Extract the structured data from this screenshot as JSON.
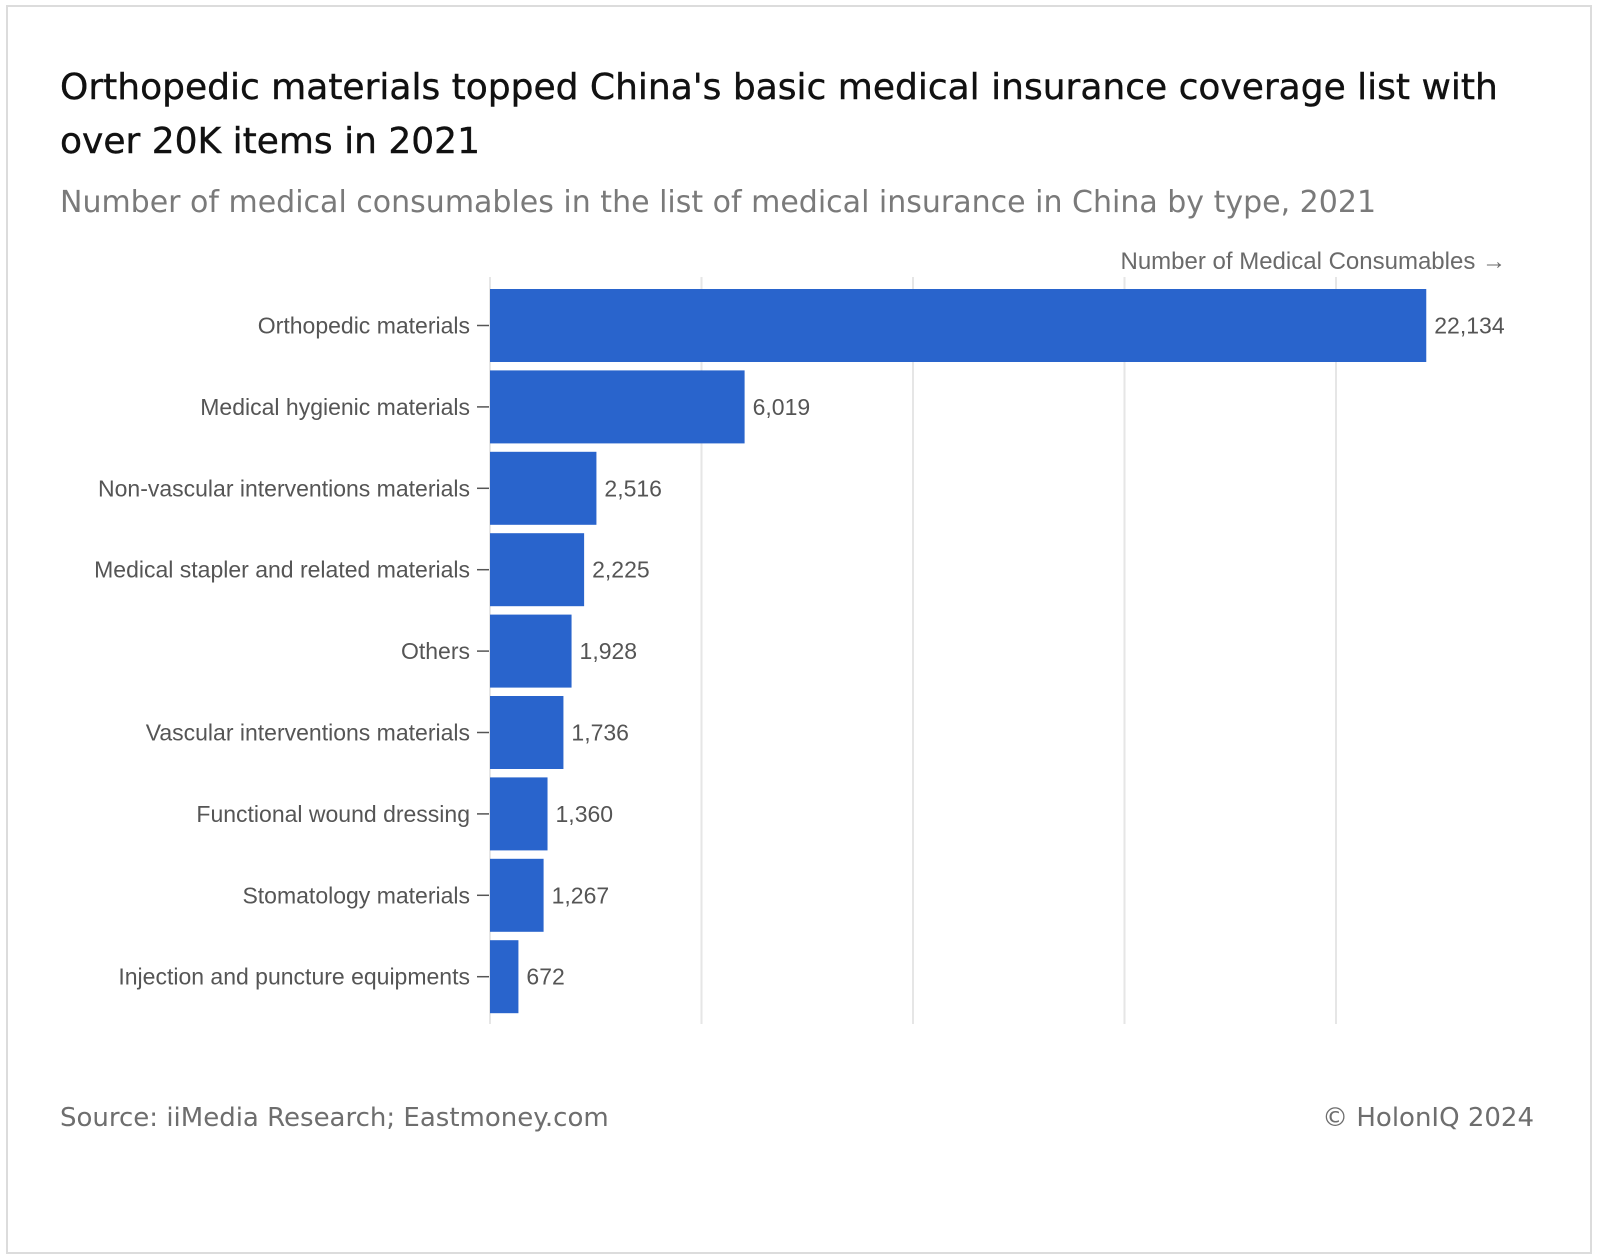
{
  "title": "Orthopedic materials topped China's basic medical insurance coverage list with over 20K items in 2021",
  "subtitle": "Number of medical consumables in the list of medical insurance in China by type, 2021",
  "source": "Source: iiMedia Research; Eastmoney.com",
  "credit": "© HolonIQ 2024",
  "colors": {
    "bar": "#2964cc",
    "grid": "#e6e6e6",
    "label": "#555555",
    "value": "#555555"
  },
  "chart_data": {
    "type": "bar",
    "orientation": "horizontal",
    "xlabel": "Number of Medical Consumables →",
    "ylabel": "",
    "xlim": [
      0,
      25000
    ],
    "grid": true,
    "legend": "none",
    "categories": [
      "Orthopedic materials",
      "Medical hygienic materials",
      "Non-vascular interventions materials",
      "Medical stapler and related materials",
      "Others",
      "Vascular interventions materials",
      "Functional wound dressing",
      "Stomatology materials",
      "Injection and puncture equipments"
    ],
    "values": [
      22134,
      6019,
      2516,
      2225,
      1928,
      1736,
      1360,
      1267,
      672
    ],
    "value_labels": [
      "22,134",
      "6,019",
      "2,516",
      "2,225",
      "1,928",
      "1,736",
      "1,360",
      "1,267",
      "672"
    ]
  }
}
